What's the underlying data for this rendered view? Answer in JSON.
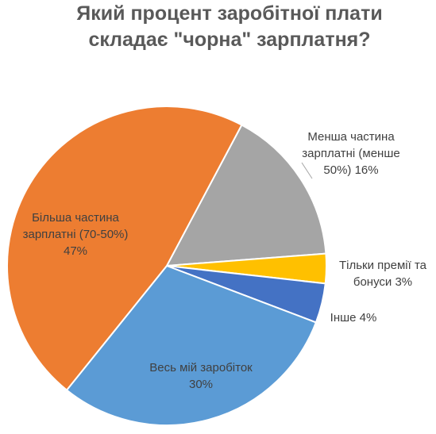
{
  "chart_data": {
    "type": "pie",
    "title_lines": [
      "Який процент заробітної плати",
      "складає \"чорна\" зарплатня?"
    ],
    "slices": [
      {
        "label_lines": [
          "Менша частина",
          "зарплатні (менше",
          "50%)  16%"
        ],
        "value": 16,
        "color": "#a5a5a5"
      },
      {
        "label_lines": [
          "Тільки премії та",
          "бонуси  3%"
        ],
        "value": 3,
        "color": "#ffc000"
      },
      {
        "label_lines": [
          "Інше 4%"
        ],
        "value": 4,
        "color": "#4472c4"
      },
      {
        "label_lines": [
          "Весь мій заробіток",
          "30%"
        ],
        "value": 30,
        "color": "#5b9bd5"
      },
      {
        "label_lines": [
          "Більша частина",
          "зарплатні (70-50%)",
          "47%"
        ],
        "value": 47,
        "color": "#ed7d31"
      }
    ],
    "legend": "none"
  }
}
